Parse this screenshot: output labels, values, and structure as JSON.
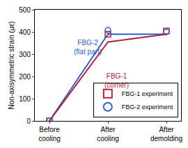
{
  "chart_data": {
    "type": "line",
    "y_label": "Non-axisymmetric strain (με)",
    "categories": [
      "Before cooling",
      "After cooling",
      "After demolding"
    ],
    "ylim": [
      0,
      500
    ],
    "yticks": [
      0,
      100,
      200,
      300,
      400,
      500
    ],
    "grid": false,
    "legend": "lower right",
    "series": [
      {
        "name": "FBG-2 (flat part)",
        "type": "line",
        "color": "#2f5fcf",
        "line_style": "solid",
        "values": [
          0,
          390,
          390
        ]
      },
      {
        "name": "FBG-1 (corner)",
        "type": "line",
        "color": "#b5203a",
        "line_style": "solid",
        "values": [
          0,
          355,
          390
        ]
      },
      {
        "name": "FBG-1 experiment",
        "type": "scatter",
        "color": "#b5203a",
        "marker": "square",
        "values": [
          0,
          390,
          405
        ]
      },
      {
        "name": "FBG-2 experiment",
        "type": "scatter",
        "color": "#2f5fcf",
        "marker": "circle",
        "values": [
          0,
          408,
          400
        ]
      }
    ]
  }
}
